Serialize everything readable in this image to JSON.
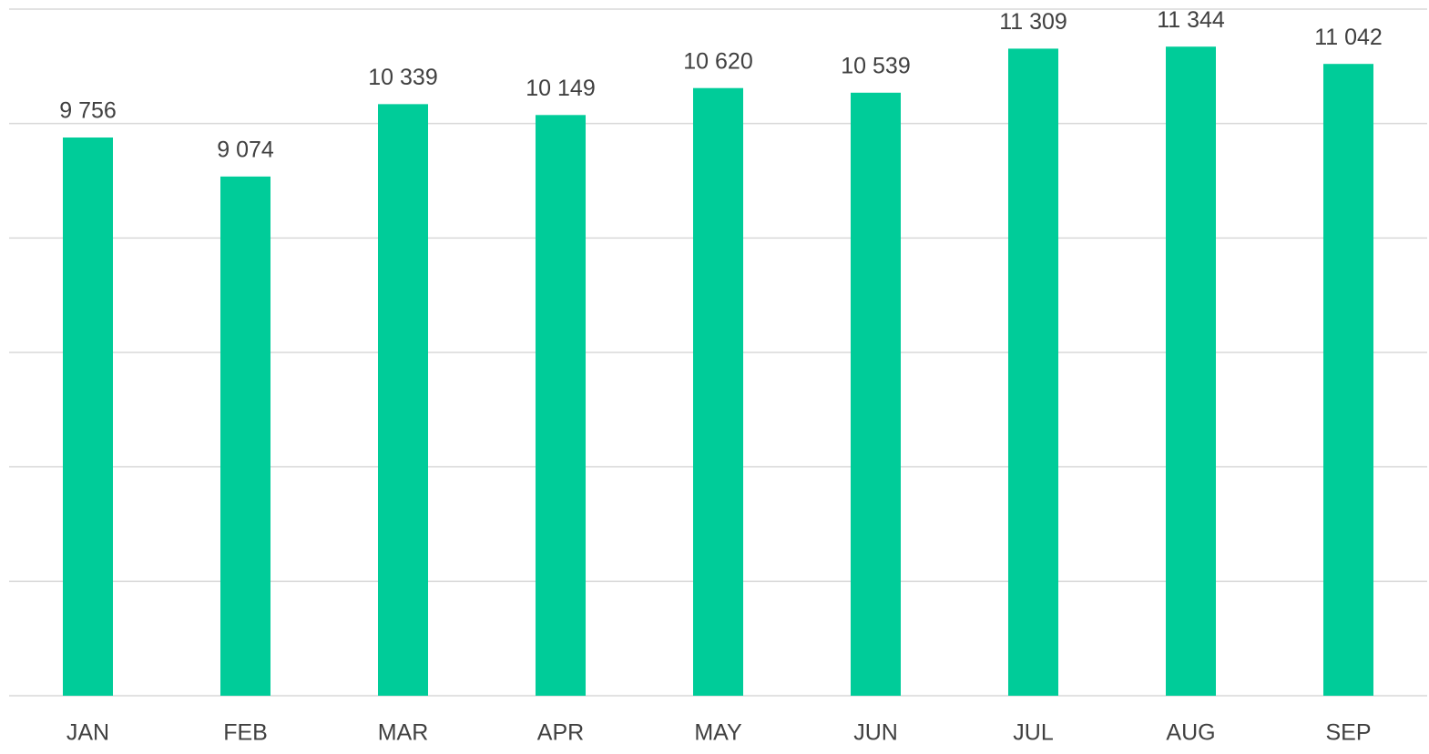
{
  "chart_data": {
    "type": "bar",
    "categories": [
      "JAN",
      "FEB",
      "MAR",
      "APR",
      "MAY",
      "JUN",
      "JUL",
      "AUG",
      "SEP"
    ],
    "values": [
      9756,
      9074,
      10339,
      10149,
      10620,
      10539,
      11309,
      11344,
      11042
    ],
    "value_labels": [
      "9 756",
      "9 074",
      "10 339",
      "10 149",
      "10 620",
      "10 539",
      "11 309",
      "11 344",
      "11 042"
    ],
    "color": "#00cc99",
    "ylim": [
      0,
      12000
    ],
    "yticks": [
      0,
      2000,
      4000,
      6000,
      8000,
      10000,
      12000
    ],
    "grid": true
  }
}
